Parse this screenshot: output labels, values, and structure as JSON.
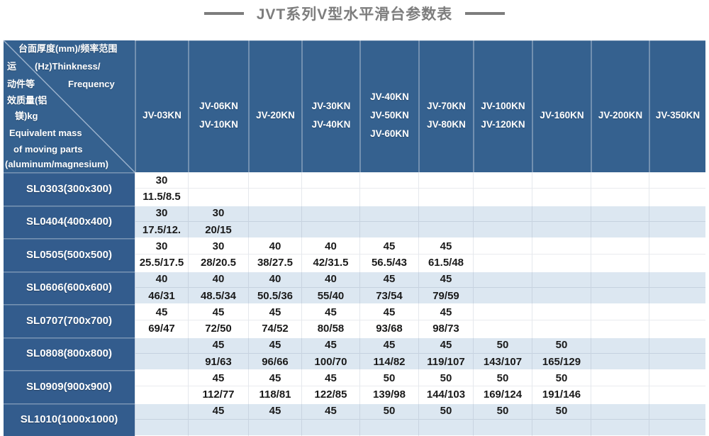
{
  "title": "JVT系列V型水平滑台参数表",
  "colors": {
    "header_blue": "#35618f",
    "row_header_blue": "#335c8d",
    "alt_row_blue": "#dce7f1",
    "title_gray": "#7d7d7d",
    "value_text": "#1a1a1a"
  },
  "corner": {
    "lines": [
      "台面厚度(mm)/频率范围",
      "运",
      "(Hz)Thinkness/",
      "动件等",
      "Frequency",
      "效质量(铝",
      "镁)kg",
      "Equivalent mass",
      "of moving parts",
      "(aluminum/magnesium)"
    ]
  },
  "columns": [
    [
      "JV-03KN"
    ],
    [
      "JV-06KN",
      "JV-10KN"
    ],
    [
      "JV-20KN"
    ],
    [
      "JV-30KN",
      "JV-40KN"
    ],
    [
      "JV-40KN",
      "JV-50KN",
      "JV-60KN"
    ],
    [
      "JV-70KN",
      "JV-80KN"
    ],
    [
      "JV-100KN",
      "JV-120KN"
    ],
    [
      "JV-160KN"
    ],
    [
      "JV-200KN"
    ],
    [
      "JV-350KN"
    ]
  ],
  "rows": [
    {
      "model": "SL0303(300x300)",
      "cells": [
        [
          "30",
          "11.5/8.5"
        ],
        [
          "",
          ""
        ],
        [
          "",
          ""
        ],
        [
          "",
          ""
        ],
        [
          "",
          ""
        ],
        [
          "",
          ""
        ],
        [
          "",
          ""
        ],
        [
          "",
          ""
        ],
        [
          "",
          ""
        ],
        [
          "",
          ""
        ]
      ]
    },
    {
      "model": "SL0404(400x400)",
      "cells": [
        [
          "30",
          "17.5/12."
        ],
        [
          "30",
          "20/15"
        ],
        [
          "",
          ""
        ],
        [
          "",
          ""
        ],
        [
          "",
          ""
        ],
        [
          "",
          ""
        ],
        [
          "",
          ""
        ],
        [
          "",
          ""
        ],
        [
          "",
          ""
        ],
        [
          "",
          ""
        ]
      ]
    },
    {
      "model": "SL0505(500x500)",
      "cells": [
        [
          "30",
          "25.5/17.5"
        ],
        [
          "30",
          "28/20.5"
        ],
        [
          "40",
          "38/27.5"
        ],
        [
          "40",
          "42/31.5"
        ],
        [
          "45",
          "56.5/43"
        ],
        [
          "45",
          "61.5/48"
        ],
        [
          "",
          ""
        ],
        [
          "",
          ""
        ],
        [
          "",
          ""
        ],
        [
          "",
          ""
        ]
      ]
    },
    {
      "model": "SL0606(600x600)",
      "cells": [
        [
          "40",
          "46/31"
        ],
        [
          "40",
          "48.5/34"
        ],
        [
          "40",
          "50.5/36"
        ],
        [
          "40",
          "55/40"
        ],
        [
          "45",
          "73/54"
        ],
        [
          "45",
          "79/59"
        ],
        [
          "",
          ""
        ],
        [
          "",
          ""
        ],
        [
          "",
          ""
        ],
        [
          "",
          ""
        ]
      ]
    },
    {
      "model": "SL0707(700x700)",
      "cells": [
        [
          "45",
          "69/47"
        ],
        [
          "45",
          "72/50"
        ],
        [
          "45",
          "74/52"
        ],
        [
          "45",
          "80/58"
        ],
        [
          "45",
          "93/68"
        ],
        [
          "45",
          "98/73"
        ],
        [
          "",
          ""
        ],
        [
          "",
          ""
        ],
        [
          "",
          ""
        ],
        [
          "",
          ""
        ]
      ]
    },
    {
      "model": "SL0808(800x800)",
      "cells": [
        [
          "",
          ""
        ],
        [
          "45",
          "91/63"
        ],
        [
          "45",
          "96/66"
        ],
        [
          "45",
          "100/70"
        ],
        [
          "45",
          "114/82"
        ],
        [
          "45",
          "119/107"
        ],
        [
          "50",
          "143/107"
        ],
        [
          "50",
          "165/129"
        ],
        [
          "",
          ""
        ],
        [
          "",
          ""
        ]
      ]
    },
    {
      "model": "SL0909(900x900)",
      "cells": [
        [
          "",
          ""
        ],
        [
          "45",
          "112/77"
        ],
        [
          "45",
          "118/81"
        ],
        [
          "45",
          "122/85"
        ],
        [
          "50",
          "139/98"
        ],
        [
          "50",
          "144/103"
        ],
        [
          "50",
          "169/124"
        ],
        [
          "50",
          "191/146"
        ],
        [
          "",
          ""
        ],
        [
          "",
          ""
        ]
      ]
    },
    {
      "model": "SL1010(1000x1000)",
      "cells": [
        [
          "",
          ""
        ],
        [
          "45",
          ""
        ],
        [
          "45",
          ""
        ],
        [
          "45",
          ""
        ],
        [
          "50",
          ""
        ],
        [
          "50",
          ""
        ],
        [
          "50",
          ""
        ],
        [
          "50",
          ""
        ],
        [
          "",
          ""
        ],
        [
          "",
          ""
        ]
      ]
    }
  ]
}
